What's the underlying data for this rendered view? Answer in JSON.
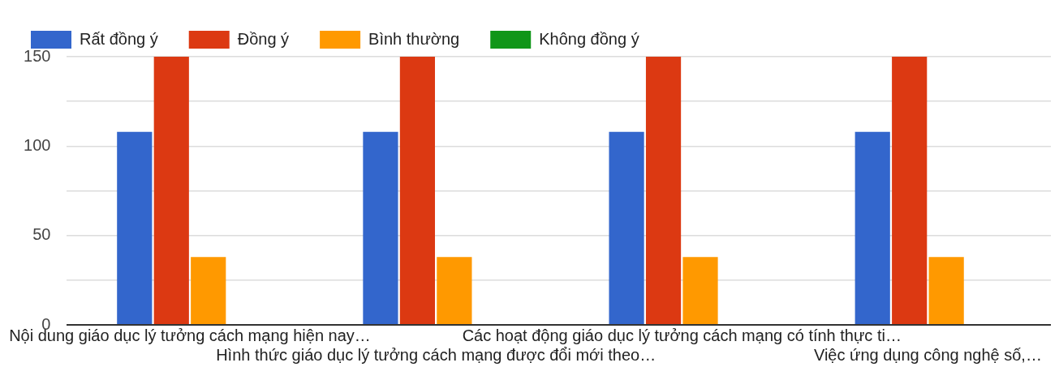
{
  "chart_data": {
    "type": "bar",
    "categories": [
      "Nội dung giáo dục lý tưởng cách mạng hiện nay…",
      "Hình thức giáo dục lý tưởng cách mạng được đổi mới theo…",
      "Các hoạt động giáo dục lý tưởng cách mạng có tính thực ti…",
      "Việc ứng dụng công nghệ số,…"
    ],
    "series": [
      {
        "name": "Rất đồng ý",
        "color": "#3366cc",
        "values": [
          108,
          108,
          108,
          108
        ]
      },
      {
        "name": "Đồng ý",
        "color": "#dc3912",
        "values": [
          150,
          150,
          150,
          150
        ]
      },
      {
        "name": "Bình thường",
        "color": "#ff9900",
        "values": [
          38,
          38,
          38,
          38
        ]
      },
      {
        "name": "Không đồng ý",
        "color": "#109618",
        "values": [
          0,
          0,
          0,
          0
        ]
      }
    ],
    "ylim": [
      0,
      150
    ],
    "yticks": [
      0,
      {
        "value": 25,
        "label": null
      },
      50,
      {
        "value": 75,
        "label": null
      },
      100,
      {
        "value": 125,
        "label": null
      },
      150
    ],
    "grid": "y",
    "legend": "top left"
  }
}
